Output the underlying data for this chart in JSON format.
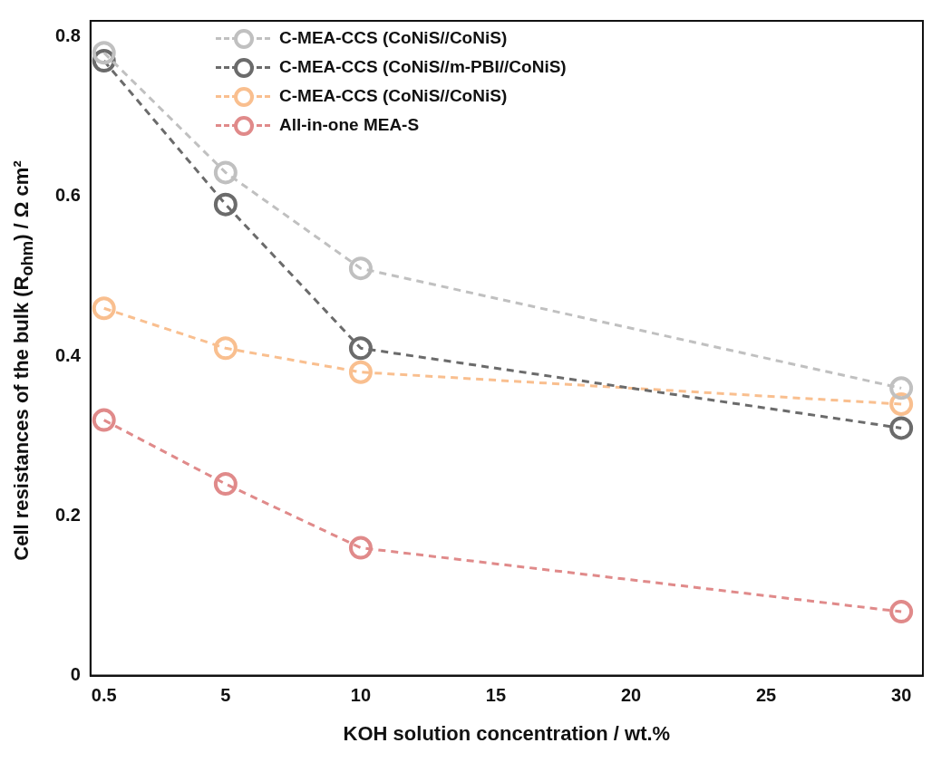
{
  "chart_data": {
    "type": "line",
    "xlabel": "KOH solution concentration / wt.%",
    "ylabel": "Cell resistances of the bulk (R$_{ohm}$) / Ω cm²",
    "x": [
      0.5,
      5,
      10,
      30
    ],
    "series": [
      {
        "name": "C-MEA-CCS (CoNiS//CoNiS)",
        "color": "#c0c0c0",
        "values": [
          0.78,
          0.63,
          0.51,
          0.36
        ]
      },
      {
        "name": "C-MEA-CCS (CoNiS//m-PBI//CoNiS)",
        "color": "#6b6b6b",
        "values": [
          0.77,
          0.59,
          0.41,
          0.31
        ]
      },
      {
        "name": "C-MEA-CCS (CoNiS//CoNiS)",
        "color": "#f9bf8f",
        "values": [
          0.46,
          0.41,
          0.38,
          0.34
        ]
      },
      {
        "name": "All-in-one MEA-S",
        "color": "#e08a8a",
        "values": [
          0.32,
          0.24,
          0.16,
          0.08
        ]
      }
    ],
    "xlim": [
      0,
      30.8
    ],
    "xticks": [
      0.5,
      5,
      10,
      15,
      20,
      25,
      30
    ],
    "ylim": [
      0,
      0.82
    ],
    "yticks": [
      0,
      0.2,
      0.4,
      0.6,
      0.8
    ],
    "grid": false,
    "legend": "top left",
    "marker": "circle",
    "line_style": "dashed"
  }
}
